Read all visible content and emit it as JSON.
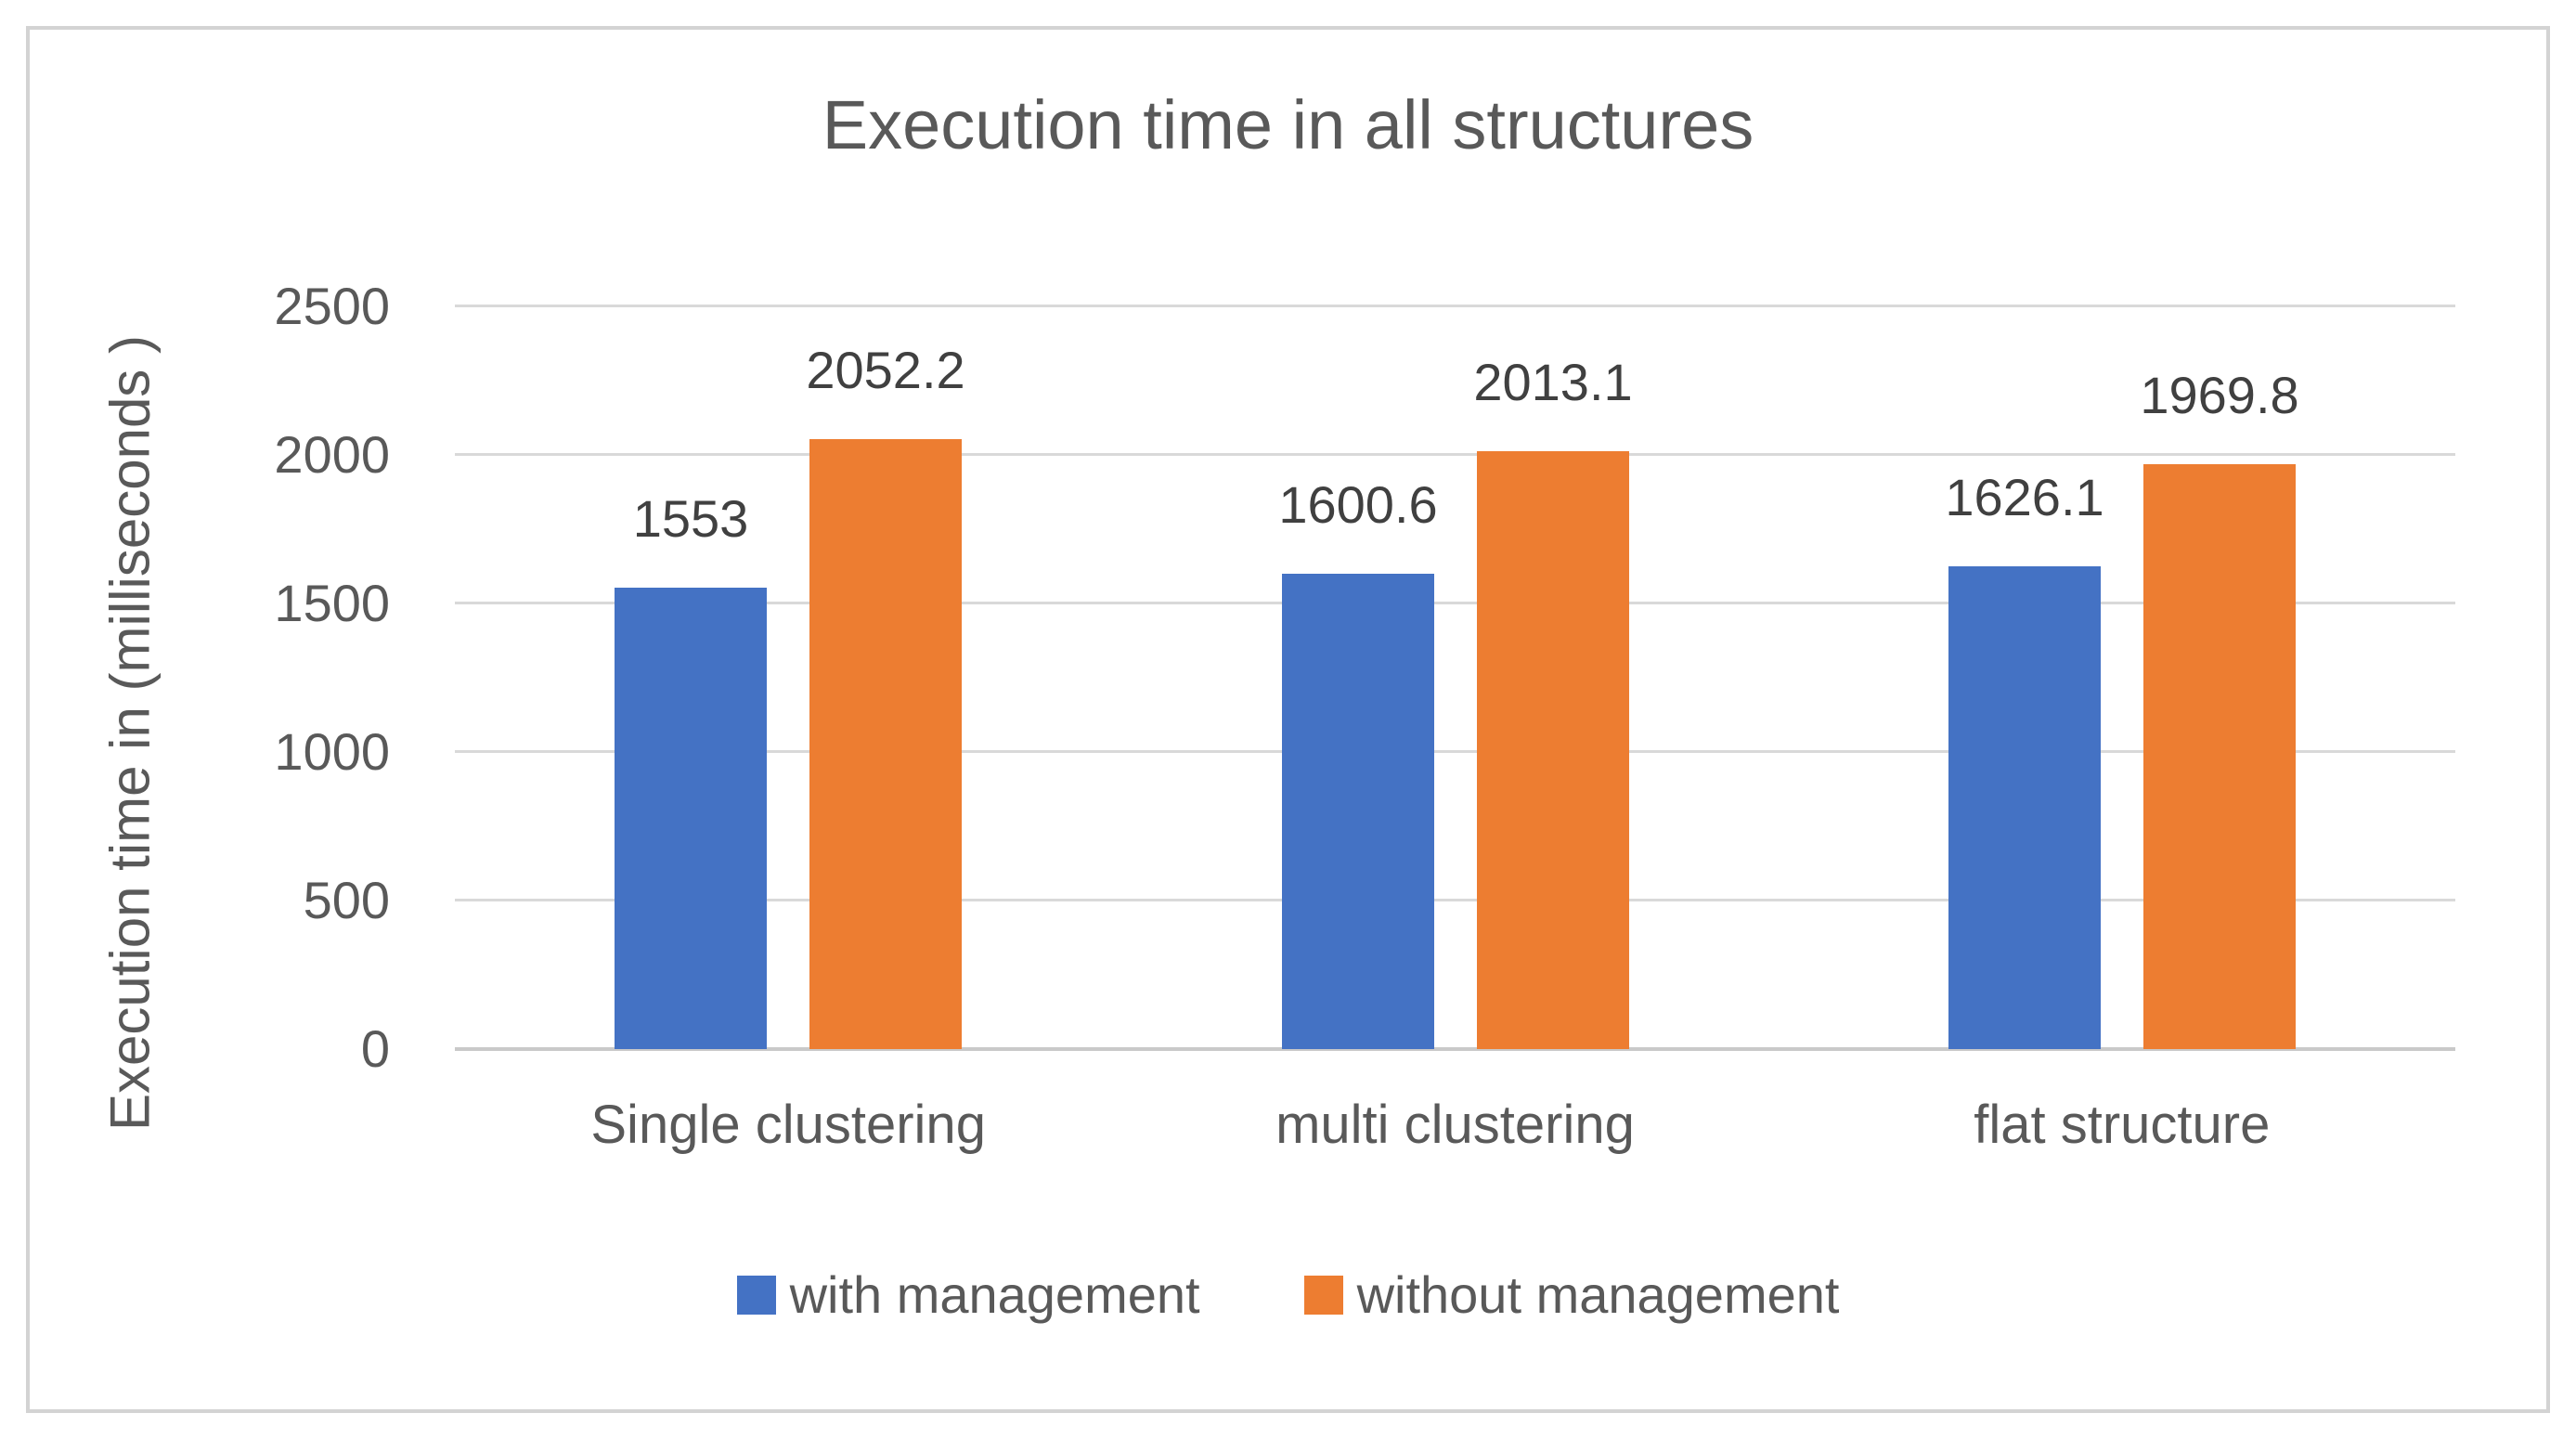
{
  "chart_data": {
    "type": "bar",
    "title": "Execution time in all structures",
    "ylabel": "Execution time in (milliseconds )",
    "xlabel": "",
    "categories": [
      "Single clustering",
      "multi clustering",
      "flat structure"
    ],
    "series": [
      {
        "name": "with management",
        "color": "#4472C4",
        "values": [
          1553,
          1600.6,
          1626.1
        ]
      },
      {
        "name": "without management",
        "color": "#ED7D31",
        "values": [
          2052.2,
          2013.1,
          1969.8
        ]
      }
    ],
    "data_labels": [
      "1553",
      "2052.2",
      "1600.6",
      "2013.1",
      "1626.1",
      "1969.8"
    ],
    "ylim": [
      0,
      2500
    ],
    "yticks": [
      0,
      500,
      1000,
      1500,
      2000,
      2500
    ],
    "grid": "horizontal-only",
    "legend_position": "bottom",
    "data_labels_visible": true,
    "colors": {
      "title_text": "#595959",
      "axis_text": "#595959",
      "data_label_text": "#404040",
      "gridline": "#D9D9D9",
      "axis_line": "#C9C9C9",
      "frame_border": "#D3D3D3",
      "series_with_management": "#4472C4",
      "series_without_management": "#ED7D31"
    }
  }
}
